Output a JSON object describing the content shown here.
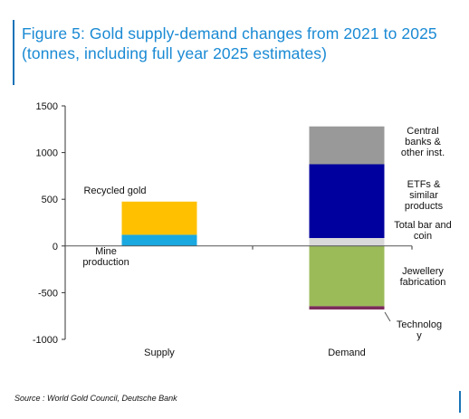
{
  "title_lines": [
    "Figure 5: Gold supply-demand changes from 2021 to 2025",
    "(tonnes, including full year 2025 estimates)"
  ],
  "source": "Source : World Gold Council, Deutsche Bank",
  "colors": {
    "title": "#1a8ad4",
    "frame": "#1a74b8",
    "mine_production": "#1aa8e0",
    "recycled_gold": "#ffc000",
    "total_bar_and_coin": "#d9d9d9",
    "etfs": "#00009e",
    "central_banks": "#999999",
    "jewellery": "#9bbb59",
    "technology": "#7b2c5b"
  },
  "chart_data": {
    "type": "bar",
    "stacked": true,
    "title": "Figure 5: Gold supply-demand changes from 2021 to 2025 (tonnes, including full year 2025 estimates)",
    "xlabel": "",
    "ylabel": "",
    "categories": [
      "Supply",
      "Demand"
    ],
    "ylim": [
      -1000,
      1500
    ],
    "yticks": [
      -1000,
      -500,
      0,
      500,
      1000,
      1500
    ],
    "ytick_labels": [
      "-1000",
      "-500",
      "0",
      "500",
      "1000",
      "1500"
    ],
    "grid": false,
    "legend": "none (direct labels)",
    "series": [
      {
        "name": "Mine production",
        "label_lines": [
          "Mine",
          "production"
        ],
        "category": "Supply",
        "start": 0,
        "value": 120
      },
      {
        "name": "Recycled gold",
        "label_lines": [
          "Recycled gold"
        ],
        "category": "Supply",
        "start": 120,
        "value": 355
      },
      {
        "name": "Total bar and coin",
        "label_lines": [
          "Total bar and",
          "coin"
        ],
        "category": "Demand",
        "start": 0,
        "value": 85
      },
      {
        "name": "ETFs & similar products",
        "label_lines": [
          "ETFs &",
          "similar",
          "products"
        ],
        "category": "Demand",
        "start": 85,
        "value": 790
      },
      {
        "name": "Central banks & other inst.",
        "label_lines": [
          "Central",
          "banks &",
          "other inst."
        ],
        "category": "Demand",
        "start": 875,
        "value": 405
      },
      {
        "name": "Jewellery fabrication",
        "label_lines": [
          "Jewellery",
          "fabrication"
        ],
        "category": "Demand",
        "start": 0,
        "value": -645
      },
      {
        "name": "Technology",
        "label_lines": [
          "Technolog",
          "y"
        ],
        "category": "Demand",
        "start": -645,
        "value": -35
      }
    ]
  }
}
